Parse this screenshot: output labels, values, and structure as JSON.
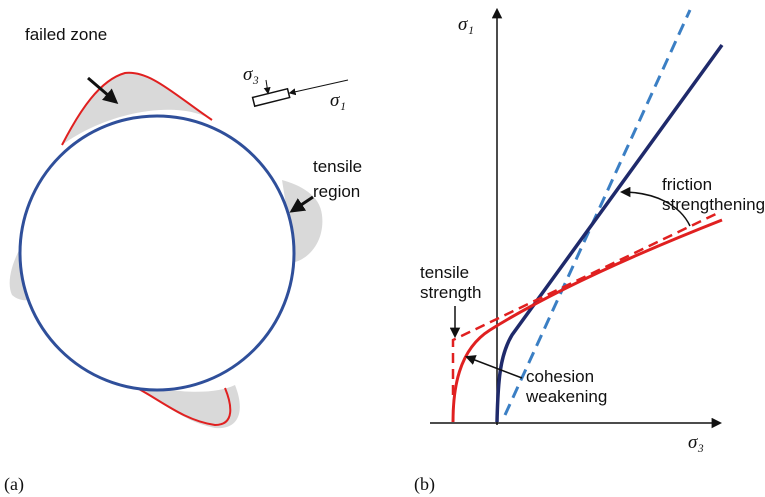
{
  "panel_a": {
    "label": "(a)",
    "failed_zone": "failed zone",
    "tensile_region": [
      "tensile",
      "region"
    ],
    "sigma3": "σ₃",
    "sigma1": "σ₁"
  },
  "panel_b": {
    "label": "(b)",
    "y_axis": "σ₁",
    "x_axis": "σ₃",
    "friction": [
      "friction",
      "strengthening"
    ],
    "tensile_strength": [
      "tensile",
      "strength"
    ],
    "cohesion": [
      "cohesion",
      "weakening"
    ]
  }
}
